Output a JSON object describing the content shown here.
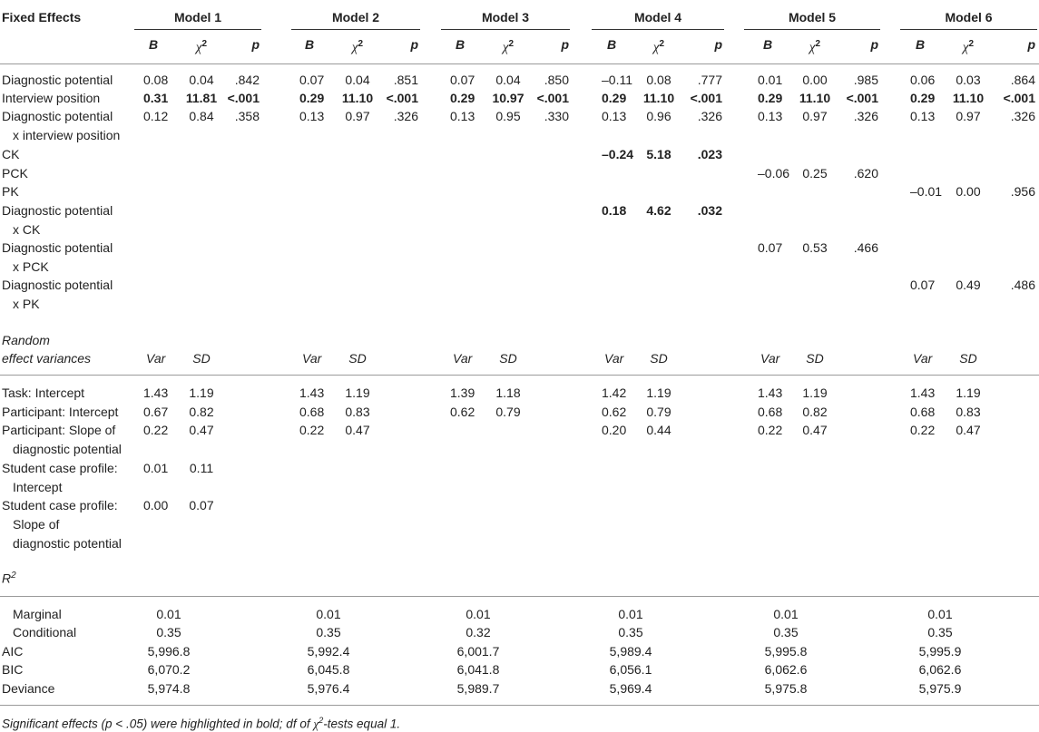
{
  "fixed_effects_label": "Fixed Effects",
  "models": [
    "Model 1",
    "Model 2",
    "Model 3",
    "Model 4",
    "Model 5",
    "Model 6"
  ],
  "subheads": {
    "B": "B",
    "chi": "χ",
    "sq": "2",
    "p": "p"
  },
  "fixed_rows": [
    {
      "label": [
        "Diagnostic potential"
      ],
      "cells": [
        [
          "0.08",
          "0.04",
          ".842"
        ],
        [
          "0.07",
          "0.04",
          ".851"
        ],
        [
          "0.07",
          "0.04",
          ".850"
        ],
        [
          "–0.11",
          "0.08",
          ".777"
        ],
        [
          "0.01",
          "0.00",
          ".985"
        ],
        [
          "0.06",
          "0.03",
          ".864"
        ]
      ],
      "bold": [
        false,
        false,
        false,
        false,
        false,
        false
      ]
    },
    {
      "label": [
        "Interview position"
      ],
      "cells": [
        [
          "0.31",
          "11.81",
          "<.001"
        ],
        [
          "0.29",
          "11.10",
          "<.001"
        ],
        [
          "0.29",
          "10.97",
          "<.001"
        ],
        [
          "0.29",
          "11.10",
          "<.001"
        ],
        [
          "0.29",
          "11.10",
          "<.001"
        ],
        [
          "0.29",
          "11.10",
          "<.001"
        ]
      ],
      "bold": [
        true,
        true,
        true,
        true,
        true,
        true
      ]
    },
    {
      "label": [
        "Diagnostic potential",
        "x interview position"
      ],
      "cells": [
        [
          "0.12",
          "0.84",
          ".358"
        ],
        [
          "0.13",
          "0.97",
          ".326"
        ],
        [
          "0.13",
          "0.95",
          ".330"
        ],
        [
          "0.13",
          "0.96",
          ".326"
        ],
        [
          "0.13",
          "0.97",
          ".326"
        ],
        [
          "0.13",
          "0.97",
          ".326"
        ]
      ],
      "bold": [
        false,
        false,
        false,
        false,
        false,
        false
      ]
    },
    {
      "label": [
        "CK"
      ],
      "cells": [
        null,
        null,
        null,
        [
          "–0.24",
          "5.18",
          ".023"
        ],
        null,
        null
      ],
      "bold": [
        false,
        false,
        false,
        true,
        false,
        false
      ]
    },
    {
      "label": [
        "PCK"
      ],
      "cells": [
        null,
        null,
        null,
        null,
        [
          "–0.06",
          "0.25",
          ".620"
        ],
        null
      ],
      "bold": [
        false,
        false,
        false,
        false,
        false,
        false
      ]
    },
    {
      "label": [
        "PK"
      ],
      "cells": [
        null,
        null,
        null,
        null,
        null,
        [
          "–0.01",
          "0.00",
          ".956"
        ]
      ],
      "bold": [
        false,
        false,
        false,
        false,
        false,
        false
      ]
    },
    {
      "label": [
        "Diagnostic potential",
        "x CK"
      ],
      "cells": [
        null,
        null,
        null,
        [
          "0.18",
          "4.62",
          ".032"
        ],
        null,
        null
      ],
      "bold": [
        false,
        false,
        false,
        true,
        false,
        false
      ]
    },
    {
      "label": [
        "Diagnostic potential",
        "x PCK"
      ],
      "cells": [
        null,
        null,
        null,
        null,
        [
          "0.07",
          "0.53",
          ".466"
        ],
        null
      ],
      "bold": [
        false,
        false,
        false,
        false,
        false,
        false
      ]
    },
    {
      "label": [
        "Diagnostic potential",
        "x PK"
      ],
      "cells": [
        null,
        null,
        null,
        null,
        null,
        [
          "0.07",
          "0.49",
          ".486"
        ]
      ],
      "bold": [
        false,
        false,
        false,
        false,
        false,
        false
      ]
    }
  ],
  "random_label": [
    "Random",
    "effect variances"
  ],
  "random_subheads": {
    "var": "Var",
    "sd": "SD"
  },
  "random_rows": [
    {
      "label": [
        "Task: Intercept"
      ],
      "cells": [
        [
          "1.43",
          "1.19"
        ],
        [
          "1.43",
          "1.19"
        ],
        [
          "1.39",
          "1.18"
        ],
        [
          "1.42",
          "1.19"
        ],
        [
          "1.43",
          "1.19"
        ],
        [
          "1.43",
          "1.19"
        ]
      ]
    },
    {
      "label": [
        "Participant: Intercept"
      ],
      "cells": [
        [
          "0.67",
          "0.82"
        ],
        [
          "0.68",
          "0.83"
        ],
        [
          "0.62",
          "0.79"
        ],
        [
          "0.62",
          "0.79"
        ],
        [
          "0.68",
          "0.82"
        ],
        [
          "0.68",
          "0.83"
        ]
      ]
    },
    {
      "label": [
        "Participant: Slope of",
        "diagnostic potential"
      ],
      "cells": [
        [
          "0.22",
          "0.47"
        ],
        [
          "0.22",
          "0.47"
        ],
        null,
        [
          "0.20",
          "0.44"
        ],
        [
          "0.22",
          "0.47"
        ],
        [
          "0.22",
          "0.47"
        ]
      ]
    },
    {
      "label": [
        "Student case profile:",
        "Intercept"
      ],
      "cells": [
        [
          "0.01",
          "0.11"
        ],
        null,
        null,
        null,
        null,
        null
      ]
    },
    {
      "label": [
        "Student case profile:",
        "Slope of",
        "diagnostic potential"
      ],
      "cells": [
        [
          "0.00",
          "0.07"
        ],
        null,
        null,
        null,
        null,
        null
      ]
    }
  ],
  "r2_label": "R",
  "r2_sup": "2",
  "fit_rows": [
    {
      "label": "Marginal",
      "indent": true,
      "values": [
        "0.01",
        "0.01",
        "0.01",
        "0.01",
        "0.01",
        "0.01"
      ]
    },
    {
      "label": "Conditional",
      "indent": true,
      "values": [
        "0.35",
        "0.35",
        "0.32",
        "0.35",
        "0.35",
        "0.35"
      ]
    },
    {
      "label": "AIC",
      "indent": false,
      "values": [
        "5,996.8",
        "5,992.4",
        "6,001.7",
        "5,989.4",
        "5,995.8",
        "5,995.9"
      ]
    },
    {
      "label": "BIC",
      "indent": false,
      "values": [
        "6,070.2",
        "6,045.8",
        "6,041.8",
        "6,056.1",
        "6,062.6",
        "6,062.6"
      ]
    },
    {
      "label": "Deviance",
      "indent": false,
      "values": [
        "5,974.8",
        "5,976.4",
        "5,989.7",
        "5,969.4",
        "5,975.8",
        "5,975.9"
      ]
    }
  ],
  "footnote_a": "Significant effects (p < .05) were highlighted in bold; df of ",
  "footnote_chi": "χ",
  "footnote_sup": "2",
  "footnote_b": "-tests equal 1."
}
